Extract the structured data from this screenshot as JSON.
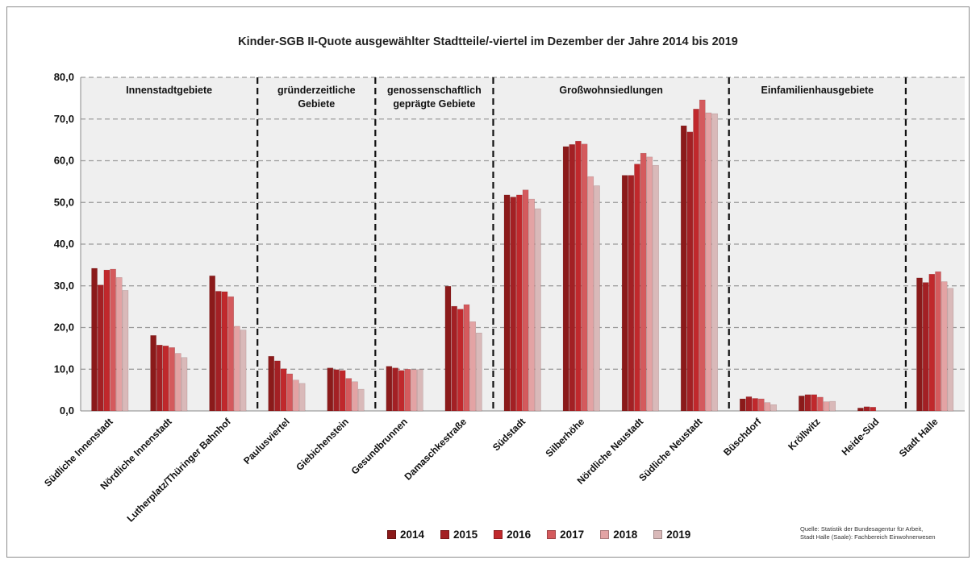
{
  "chart_data": {
    "type": "bar",
    "title": "Kinder-SGB II-Quote ausgewählter Stadtteile/-viertel im Dezember der Jahre 2014 bis 2019",
    "xlabel": "",
    "ylabel": "",
    "ylim": [
      0,
      80
    ],
    "yticks": [
      "0,0",
      "10,0",
      "20,0",
      "30,0",
      "40,0",
      "50,0",
      "60,0",
      "70,0",
      "80,0"
    ],
    "grid": true,
    "legend_position": "bottom",
    "categories": [
      "Südliche Innenstadt",
      "Nördliche Innenstadt",
      "Lutherplatz/Thüringer Bahnhof",
      "Paulusviertel",
      "Giebichenstein",
      "Gesundbrunnen",
      "Damaschkestraße",
      "Südstadt",
      "Silberhöhe",
      "Nördliche Neustadt",
      "Südliche Neustadt",
      "Büschdorf",
      "Kröllwitz",
      "Heide-Süd",
      "Stadt Halle"
    ],
    "groups": [
      {
        "label_lines": [
          "Innenstadtgebiete"
        ],
        "categories": 3
      },
      {
        "label_lines": [
          "gründerzeitliche",
          "Gebiete"
        ],
        "categories": 2
      },
      {
        "label_lines": [
          "genossenschaftlich",
          "geprägte Gebiete"
        ],
        "categories": 2
      },
      {
        "label_lines": [
          "Großwohnsiedlungen"
        ],
        "categories": 4
      },
      {
        "label_lines": [
          "Einfamilienhausgebiete"
        ],
        "categories": 3
      },
      {
        "label_lines": [
          ""
        ],
        "categories": 1
      }
    ],
    "series": [
      {
        "name": "2014",
        "color": "#8b1a1a",
        "values": [
          34.2,
          18.1,
          32.4,
          13.1,
          10.3,
          10.7,
          29.9,
          51.8,
          63.4,
          56.5,
          68.4,
          2.9,
          3.6,
          0.7,
          31.9
        ]
      },
      {
        "name": "2015",
        "color": "#a32024",
        "values": [
          30.2,
          15.8,
          28.7,
          12.0,
          9.9,
          10.3,
          25.1,
          51.3,
          63.9,
          56.5,
          66.9,
          3.4,
          3.9,
          1.0,
          30.8
        ]
      },
      {
        "name": "2016",
        "color": "#c0282c",
        "values": [
          33.8,
          15.6,
          28.6,
          10.1,
          9.7,
          9.7,
          24.4,
          51.8,
          64.7,
          59.2,
          72.4,
          3.0,
          3.9,
          0.9,
          32.8
        ]
      },
      {
        "name": "2017",
        "color": "#d45a5d",
        "values": [
          34.0,
          15.2,
          27.4,
          8.9,
          7.8,
          10.0,
          25.5,
          53.0,
          64.0,
          61.8,
          74.6,
          2.9,
          3.3,
          0.0,
          33.4
        ]
      },
      {
        "name": "2018",
        "color": "#e3a3a4",
        "values": [
          32.0,
          13.8,
          20.3,
          7.4,
          7.0,
          9.9,
          21.4,
          50.8,
          56.2,
          60.9,
          71.5,
          2.0,
          2.2,
          0.0,
          31.0
        ]
      },
      {
        "name": "2019",
        "color": "#d9b9b9",
        "values": [
          28.9,
          12.8,
          19.4,
          6.6,
          5.2,
          9.9,
          18.7,
          48.5,
          54.0,
          58.9,
          71.3,
          1.5,
          2.3,
          0.0,
          29.4
        ]
      }
    ],
    "source": [
      "Quelle: Statistik der Bundesagentur für Arbeit,",
      "Stadt Halle (Saale): Fachbereich Einwohnerwesen"
    ]
  }
}
